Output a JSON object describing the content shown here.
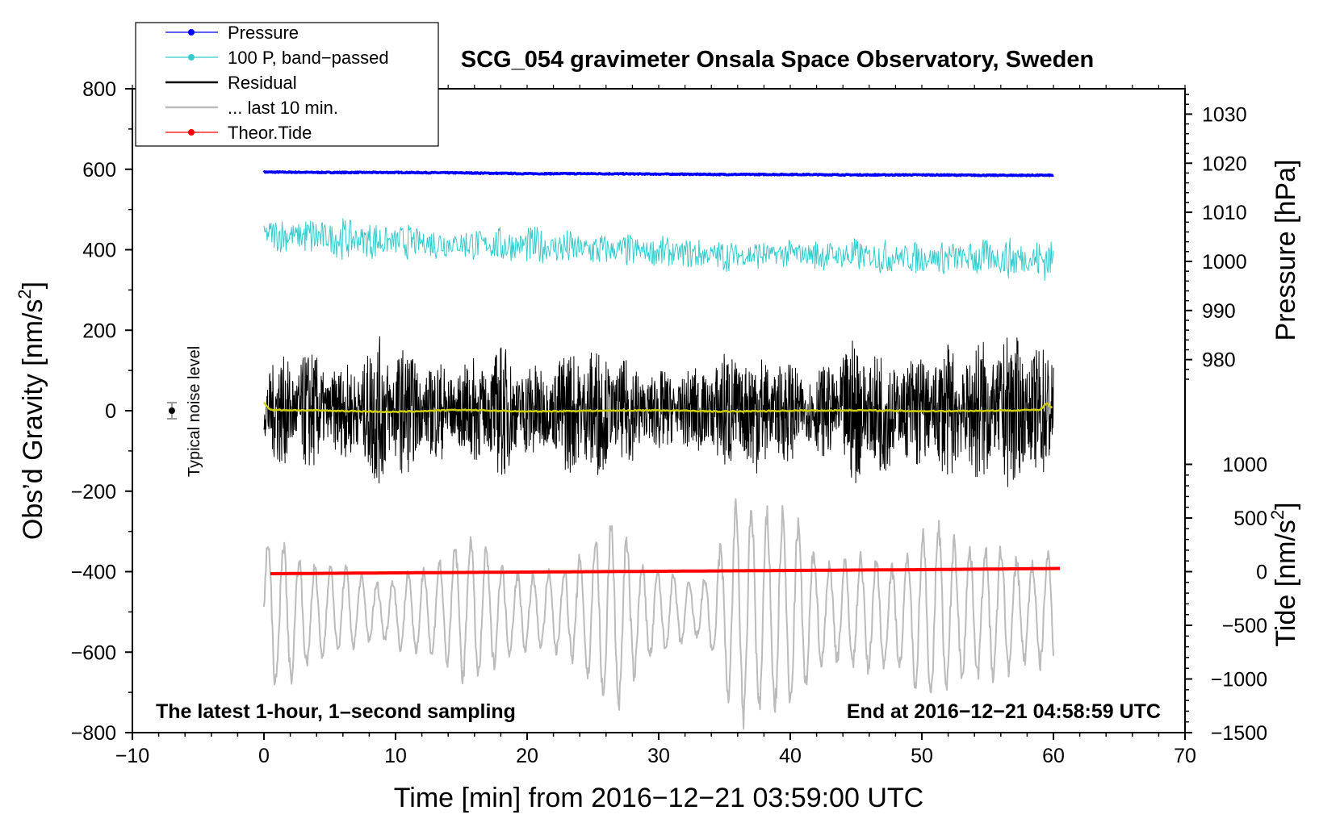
{
  "chart_data": {
    "type": "line",
    "title": "SCG_054 gravimeter Onsala Space Observatory, Sweden",
    "xlabel": "Time [min] from 2016−12−21 03:59:00 UTC",
    "ylabel": "Obs’d Gravity [nm/s²]",
    "ylabel_left_main": "Obs’d Gravity [nm/s",
    "ylabel_left_sup": "2",
    "ylabel_left_end": "]",
    "right_pressure_label": "Pressure [hPa]",
    "right_tide_label_main": "Tide [nm/s",
    "right_tide_label_sup": "2",
    "right_tide_label_end": "]",
    "xlim": [
      -10,
      70
    ],
    "ylim": [
      -800,
      800
    ],
    "x_ticks": [
      "−10",
      "0",
      "10",
      "20",
      "30",
      "40",
      "50",
      "60",
      "70"
    ],
    "x_tick_values": [
      -10,
      0,
      10,
      20,
      30,
      40,
      50,
      60,
      70
    ],
    "y_ticks": [
      "800",
      "600",
      "400",
      "200",
      "0",
      "−200",
      "−400",
      "−600",
      "−800"
    ],
    "y_tick_values": [
      800,
      600,
      400,
      200,
      0,
      -200,
      -400,
      -600,
      -800
    ],
    "pressure_axis": {
      "ticks": [
        "1030",
        "1020",
        "1010",
        "1000",
        "990",
        "980"
      ],
      "values": [
        1030,
        1020,
        1010,
        1000,
        990,
        980
      ],
      "gravity_at_1020": 615,
      "gravity_per_hpa": 12.2
    },
    "tide_axis": {
      "ticks": [
        "1000",
        "500",
        "0",
        "−500",
        "−1000",
        "−1500"
      ],
      "values": [
        1000,
        500,
        0,
        -500,
        -1000,
        -1500
      ],
      "gravity_at_0": -400,
      "gravity_per_unit": 0.2667
    },
    "annotation_left": "The latest 1-hour, 1–second sampling",
    "annotation_right": "End at 2016−12−21 04:58:59 UTC",
    "noise_label": "Typical noise level",
    "noise_marker": {
      "x": -7,
      "y": 0,
      "error": 20
    },
    "legend": [
      {
        "label": "Pressure",
        "color": "#0000ff",
        "marker": true
      },
      {
        "label": "100 P, band−passed",
        "color": "#33cccc",
        "marker": true
      },
      {
        "label": "Residual",
        "color": "#000000",
        "marker": false
      },
      {
        "label": "... last 10 min.",
        "color": "#bbbbbb",
        "marker": false
      },
      {
        "label": "Theor.Tide",
        "color": "#ff0000",
        "marker": true
      }
    ],
    "series": [
      {
        "name": "Pressure",
        "color": "#0000ff",
        "x": [
          0,
          5,
          10,
          15,
          20,
          25,
          30,
          35,
          40,
          45,
          50,
          55,
          60
        ],
        "values": [
          593,
          592,
          592,
          591,
          589,
          589,
          588,
          587,
          587,
          586,
          586,
          585,
          585
        ]
      },
      {
        "name": "100 P, band−passed",
        "color": "#33cccc",
        "x": [
          0,
          5,
          10,
          15,
          20,
          25,
          30,
          35,
          40,
          45,
          50,
          55,
          60
        ],
        "values": [
          440,
          430,
          420,
          415,
          410,
          400,
          395,
          385,
          390,
          385,
          380,
          380,
          375
        ],
        "amplitude": [
          40,
          55,
          45,
          40,
          50,
          45,
          40,
          40,
          35,
          45,
          40,
          50,
          55
        ]
      },
      {
        "name": "Residual",
        "color": "#000000",
        "x": [
          0,
          3,
          6,
          9,
          12,
          15,
          18,
          21,
          24,
          27,
          30,
          33,
          36,
          39,
          42,
          45,
          48,
          51,
          54,
          57,
          60
        ],
        "values": [
          0,
          0,
          0,
          0,
          0,
          0,
          0,
          0,
          0,
          0,
          0,
          0,
          0,
          0,
          0,
          0,
          0,
          0,
          0,
          0,
          0
        ],
        "amplitude": [
          120,
          160,
          110,
          200,
          130,
          120,
          170,
          110,
          180,
          140,
          100,
          110,
          170,
          140,
          100,
          190,
          140,
          160,
          180,
          200,
          150
        ]
      },
      {
        "name": "... last 10 min.",
        "color": "#bbbbbb",
        "x": [
          0,
          3,
          6,
          9,
          12,
          15,
          18,
          21,
          24,
          27,
          30,
          33,
          36,
          39,
          42,
          45,
          48,
          51,
          54,
          57,
          60
        ],
        "values": [
          -500,
          -510,
          -490,
          -500,
          -500,
          -490,
          -500,
          -500,
          -500,
          -510,
          -500,
          -500,
          -500,
          -500,
          -500,
          -500,
          -510,
          -500,
          -500,
          -500,
          -500
        ],
        "amplitude": [
          200,
          150,
          110,
          100,
          120,
          180,
          150,
          100,
          170,
          230,
          110,
          90,
          280,
          280,
          170,
          170,
          150,
          220,
          200,
          180,
          160
        ]
      },
      {
        "name": "Theor.Tide",
        "color": "#ff0000",
        "x": [
          0.5,
          10,
          20,
          30,
          40,
          50,
          60.5
        ],
        "values": [
          -405,
          -403,
          -401,
          -399,
          -397,
          -395,
          -392
        ]
      },
      {
        "name": "Residual mean",
        "color": "#cccc00",
        "x": [
          0,
          0.5,
          5,
          10,
          15,
          20,
          25,
          30,
          35,
          40,
          45,
          50,
          55,
          59,
          59.5,
          60
        ],
        "values": [
          20,
          2,
          0,
          -3,
          2,
          -2,
          0,
          1,
          -2,
          0,
          1,
          -1,
          0,
          2,
          18,
          4
        ]
      }
    ]
  }
}
